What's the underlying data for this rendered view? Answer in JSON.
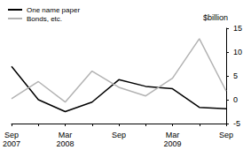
{
  "chart_data": {
    "type": "line",
    "y_label": "$billion",
    "categories": [
      "Sep\n2007",
      null,
      "Mar\n2008",
      null,
      "Sep",
      null,
      "Mar\n2009",
      null,
      "Sep"
    ],
    "series": [
      {
        "name": "One name paper",
        "color": "#000000",
        "values": [
          7,
          0,
          -2.5,
          -0.5,
          4.2,
          2.8,
          2.3,
          -1.6,
          -1.9
        ]
      },
      {
        "name": "Bonds, etc.",
        "color": "#b3b3b3",
        "values": [
          0.2,
          3.8,
          -0.5,
          6,
          2.6,
          0.8,
          4.5,
          12.8,
          1.8
        ]
      }
    ],
    "ylim": [
      -5,
      15
    ],
    "yticks": [
      -5,
      0,
      5,
      10,
      15
    ],
    "grid": false,
    "legend": "top-left"
  }
}
